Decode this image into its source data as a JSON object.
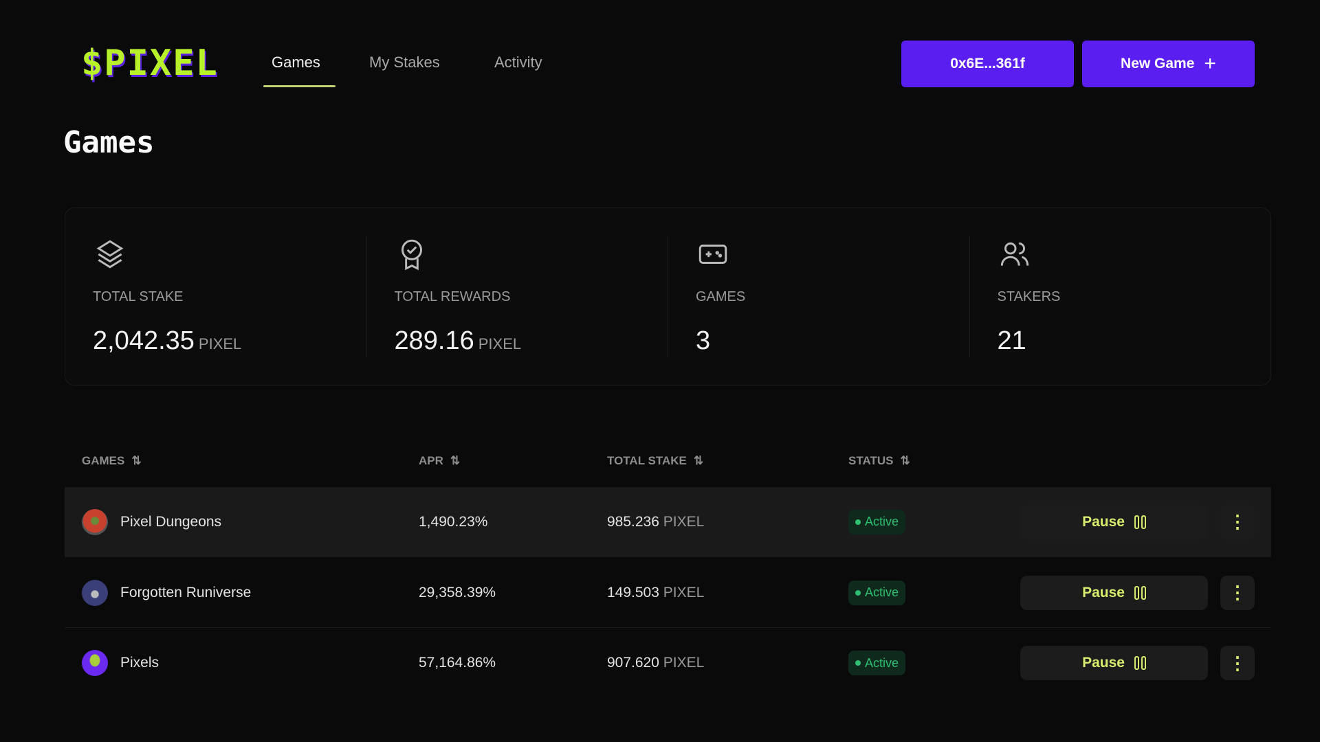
{
  "header": {
    "logo": "$PIXEL",
    "nav": [
      "Games",
      "My Stakes",
      "Activity"
    ],
    "wallet": "0x6E...361f",
    "new_game": "New Game",
    "new_game_icon": "plus-icon"
  },
  "page_title": "Games",
  "stats": [
    {
      "icon": "layers-icon",
      "label": "TOTAL STAKE",
      "value": "2,042.35",
      "unit": "PIXEL"
    },
    {
      "icon": "award-icon",
      "label": "TOTAL REWARDS",
      "value": "289.16",
      "unit": "PIXEL"
    },
    {
      "icon": "gamepad-icon",
      "label": "GAMES",
      "value": "3",
      "unit": ""
    },
    {
      "icon": "users-icon",
      "label": "STAKERS",
      "value": "21",
      "unit": ""
    }
  ],
  "table": {
    "headers": [
      "GAMES",
      "APR",
      "TOTAL STAKE",
      "STATUS"
    ],
    "rows": [
      {
        "name": "Pixel Dungeons",
        "apr": "1,490.23%",
        "stake": "985.236",
        "unit": "PIXEL",
        "status": "Active",
        "action": "Pause",
        "more": "⋮"
      },
      {
        "name": "Forgotten Runiverse",
        "apr": "29,358.39%",
        "stake": "149.503",
        "unit": "PIXEL",
        "status": "Active",
        "action": "Pause",
        "more": "⋮"
      },
      {
        "name": "Pixels",
        "apr": "57,164.86%",
        "stake": "907.620",
        "unit": "PIXEL",
        "status": "Active",
        "action": "Pause",
        "more": "⋮"
      }
    ]
  },
  "colors": {
    "accent": "#5b1ef0",
    "logo": "#b8f02a",
    "active": "#2fbf71",
    "pause": "#d6ec6c"
  }
}
